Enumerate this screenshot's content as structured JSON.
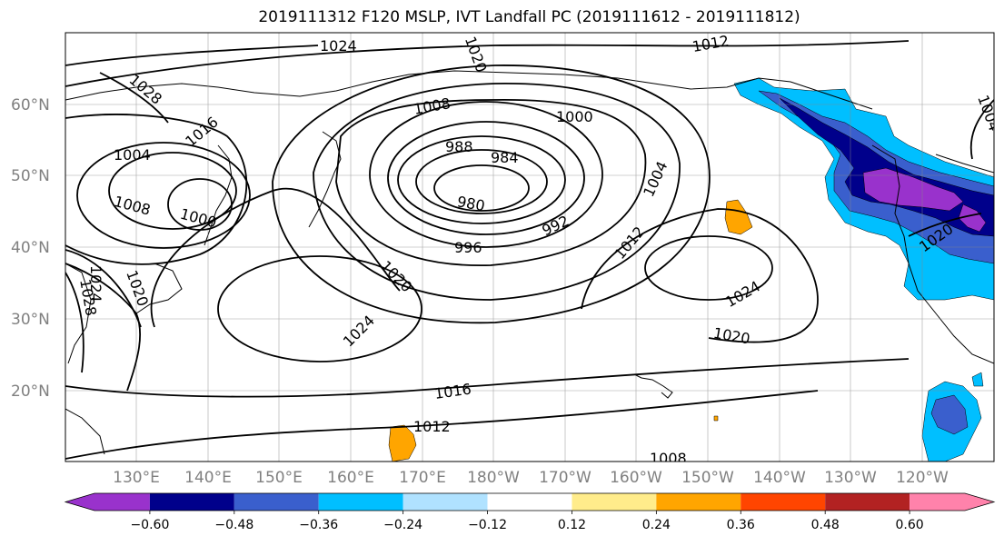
{
  "title": "2019111312 F120 MSLP, IVT Landfall PC (2019111612 - 2019111812)",
  "map": {
    "lat_labels": [
      "60°N",
      "50°N",
      "40°N",
      "30°N",
      "20°N"
    ],
    "lon_labels": [
      "130°E",
      "140°E",
      "150°E",
      "160°E",
      "170°E",
      "180°W",
      "170°W",
      "160°W",
      "150°W",
      "140°W",
      "130°W",
      "120°W"
    ],
    "isobar_labels": [
      {
        "text": "1024",
        "id": "a"
      },
      {
        "text": "1020",
        "id": "b"
      },
      {
        "text": "1012",
        "id": "c"
      },
      {
        "text": "1028",
        "id": "d"
      },
      {
        "text": "1016",
        "id": "e"
      },
      {
        "text": "1004",
        "id": "f"
      },
      {
        "text": "1008",
        "id": "g"
      },
      {
        "text": "1000",
        "id": "h"
      },
      {
        "text": "1008",
        "id": "i"
      },
      {
        "text": "1000",
        "id": "j"
      },
      {
        "text": "988",
        "id": "k"
      },
      {
        "text": "984",
        "id": "l"
      },
      {
        "text": "980",
        "id": "m"
      },
      {
        "text": "992",
        "id": "n"
      },
      {
        "text": "996",
        "id": "o"
      },
      {
        "text": "1004",
        "id": "p"
      },
      {
        "text": "1012",
        "id": "q"
      },
      {
        "text": "1020",
        "id": "r"
      },
      {
        "text": "1024",
        "id": "s"
      },
      {
        "text": "1024",
        "id": "t"
      },
      {
        "text": "1020",
        "id": "u"
      },
      {
        "text": "1016",
        "id": "v"
      },
      {
        "text": "1012",
        "id": "w"
      },
      {
        "text": "1008",
        "id": "x"
      },
      {
        "text": "1024",
        "id": "y"
      },
      {
        "text": "1020",
        "id": "z"
      },
      {
        "text": "1028",
        "id": "aa"
      },
      {
        "text": "1004",
        "id": "ab"
      },
      {
        "text": "1020",
        "id": "ac"
      }
    ]
  },
  "colorbar": {
    "colors": [
      "#9932cc",
      "#00008b",
      "#3a5fcd",
      "#00bfff",
      "#b0e2ff",
      "#ffffff",
      "#ffec8b",
      "#ffa500",
      "#ff4500",
      "#b22222",
      "#ff82ab"
    ],
    "ticks": [
      "−0.60",
      "−0.48",
      "−0.36",
      "−0.24",
      "−0.12",
      "0.12",
      "0.24",
      "0.36",
      "0.48",
      "0.60"
    ]
  }
}
